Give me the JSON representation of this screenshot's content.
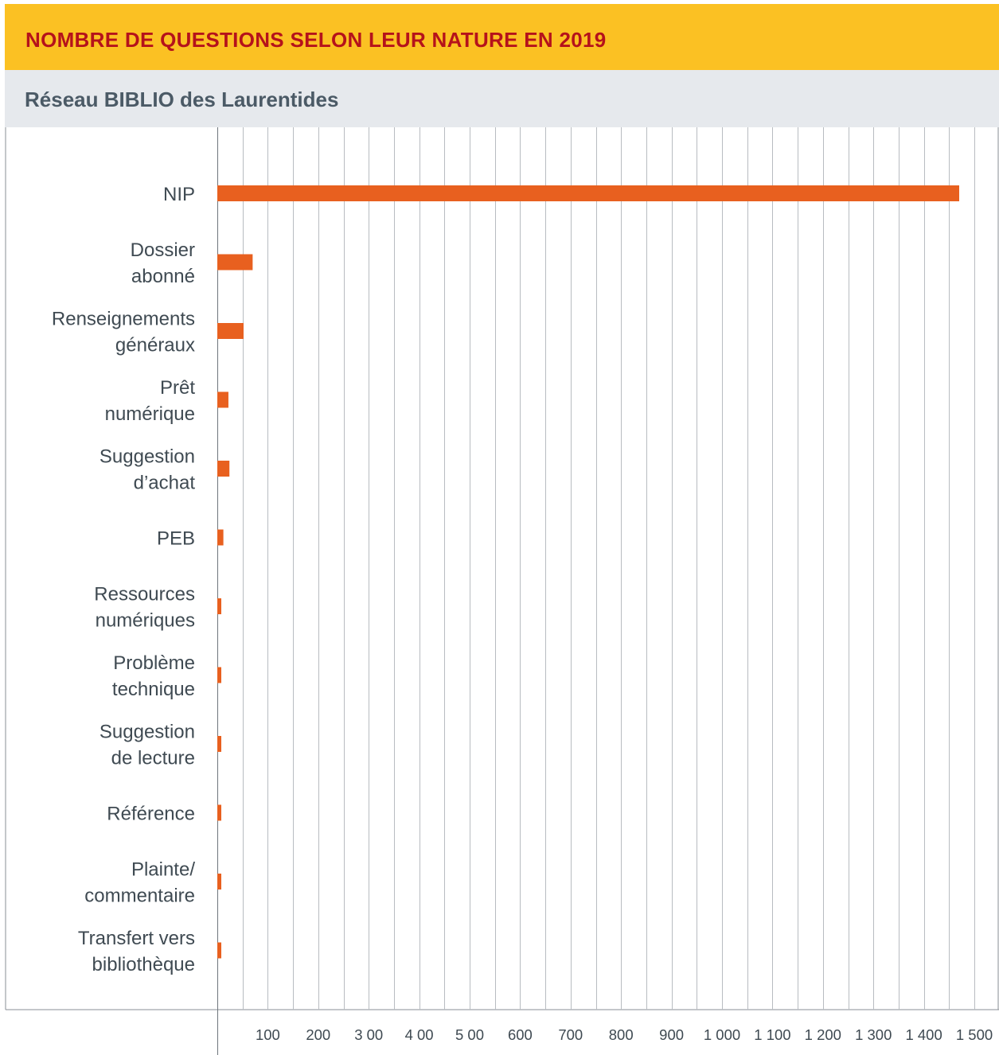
{
  "header": {
    "title": "NOMBRE DE QUESTIONS SELON LEUR NATURE EN 2019",
    "subtitle": "Réseau BIBLIO des Laurentides"
  },
  "colors": {
    "title_band": "#fbc123",
    "title_text": "#b5121b",
    "subtitle_band": "#e6e9ed",
    "subtitle_text": "#4b5a66",
    "bar": "#e8601f",
    "grid": "#b8bcc1"
  },
  "chart_data": {
    "type": "bar",
    "orientation": "horizontal",
    "title": "NOMBRE DE QUESTIONS SELON LEUR NATURE EN 2019",
    "subtitle": "Réseau BIBLIO des Laurentides",
    "categories": [
      [
        "NIP"
      ],
      [
        "Dossier",
        "abonné"
      ],
      [
        "Renseignements",
        "généraux"
      ],
      [
        "Prêt",
        "numérique"
      ],
      [
        "Suggestion",
        "d’achat"
      ],
      [
        "PEB"
      ],
      [
        "Ressources",
        "numériques"
      ],
      [
        "Problème",
        "technique"
      ],
      [
        "Suggestion",
        "de lecture"
      ],
      [
        "Référence"
      ],
      [
        "Plainte/",
        "commentaire"
      ],
      [
        "Transfert vers",
        "bibliothèque"
      ]
    ],
    "values": [
      1470,
      70,
      52,
      22,
      24,
      12,
      7,
      7,
      7,
      7,
      7,
      7
    ],
    "xlim": [
      0,
      1550
    ],
    "xticks": [
      100,
      200,
      300,
      400,
      500,
      600,
      700,
      800,
      900,
      1000,
      1100,
      1200,
      1300,
      1400,
      1500
    ],
    "xtick_labels": [
      "100",
      "200",
      "3 00",
      "4 00",
      "5 00",
      "600",
      "700",
      "800",
      "900",
      "1 000",
      "1 100",
      "1 200",
      "1 300",
      "1 400",
      "1 500"
    ],
    "grid_step": 50,
    "grid": true,
    "legend": "none"
  }
}
